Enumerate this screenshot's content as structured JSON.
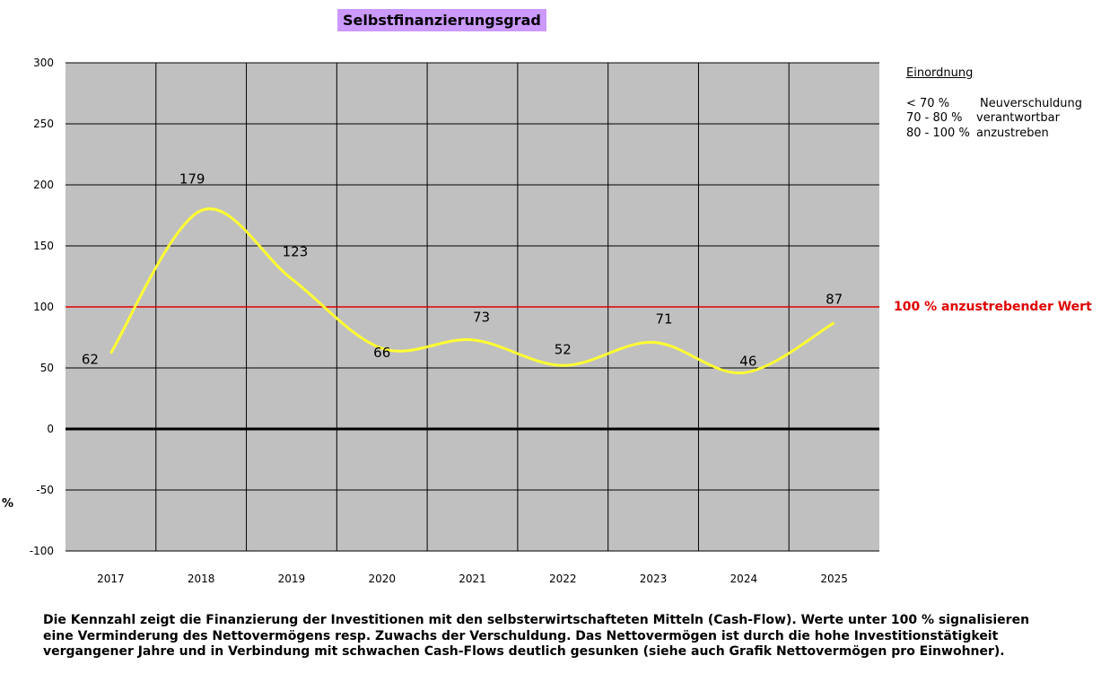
{
  "title": "Selbstfinanzierungsgrad",
  "y_unit": "%",
  "legend": {
    "heading": "Einordnung",
    "rows": [
      {
        "range": "< 70 %",
        "label": "Neuverschuldung"
      },
      {
        "range": "70 - 80 %",
        "label": "verantwortbar"
      },
      {
        "range": "80 - 100 %",
        "label": "anzustreben"
      }
    ]
  },
  "reference_label": "100 % anzustrebender Wert",
  "description": "Die Kennzahl zeigt die Finanzierung der Investitionen mit den selbsterwirtschafteten Mitteln (Cash-Flow). Werte unter 100 % signalisieren eine Verminderung des Nettovermögens resp. Zuwachs der Verschuldung. Das Nettovermögen ist durch die hohe Investitionstätigkeit vergangener Jahre und in Verbindung mit schwachen Cash-Flows deutlich gesunken (siehe auch Grafik Nettovermögen pro Einwohner).",
  "colors": {
    "plot_background": "#c0c0c0",
    "series_line": "#ffff33",
    "reference_line": "#e00000",
    "grid": "#000000",
    "title_background": "#cc99ff"
  },
  "chart_data": {
    "type": "line",
    "title": "Selbstfinanzierungsgrad",
    "ylabel": "%",
    "xlabel": "",
    "categories": [
      "2017",
      "2018",
      "2019",
      "2020",
      "2021",
      "2022",
      "2023",
      "2024",
      "2025"
    ],
    "series": [
      {
        "values": [
          62,
          179,
          123,
          66,
          73,
          52,
          71,
          46,
          87
        ],
        "smooth": true
      }
    ],
    "reference_line": {
      "value": 100,
      "label": "100 % anzustrebender Wert"
    },
    "ylim": [
      -100,
      300
    ],
    "yticks": [
      "300",
      "250",
      "200",
      "150",
      "100",
      "50",
      "0",
      "-50",
      "-100"
    ],
    "grid": true,
    "zero_line_emphasized": true
  }
}
